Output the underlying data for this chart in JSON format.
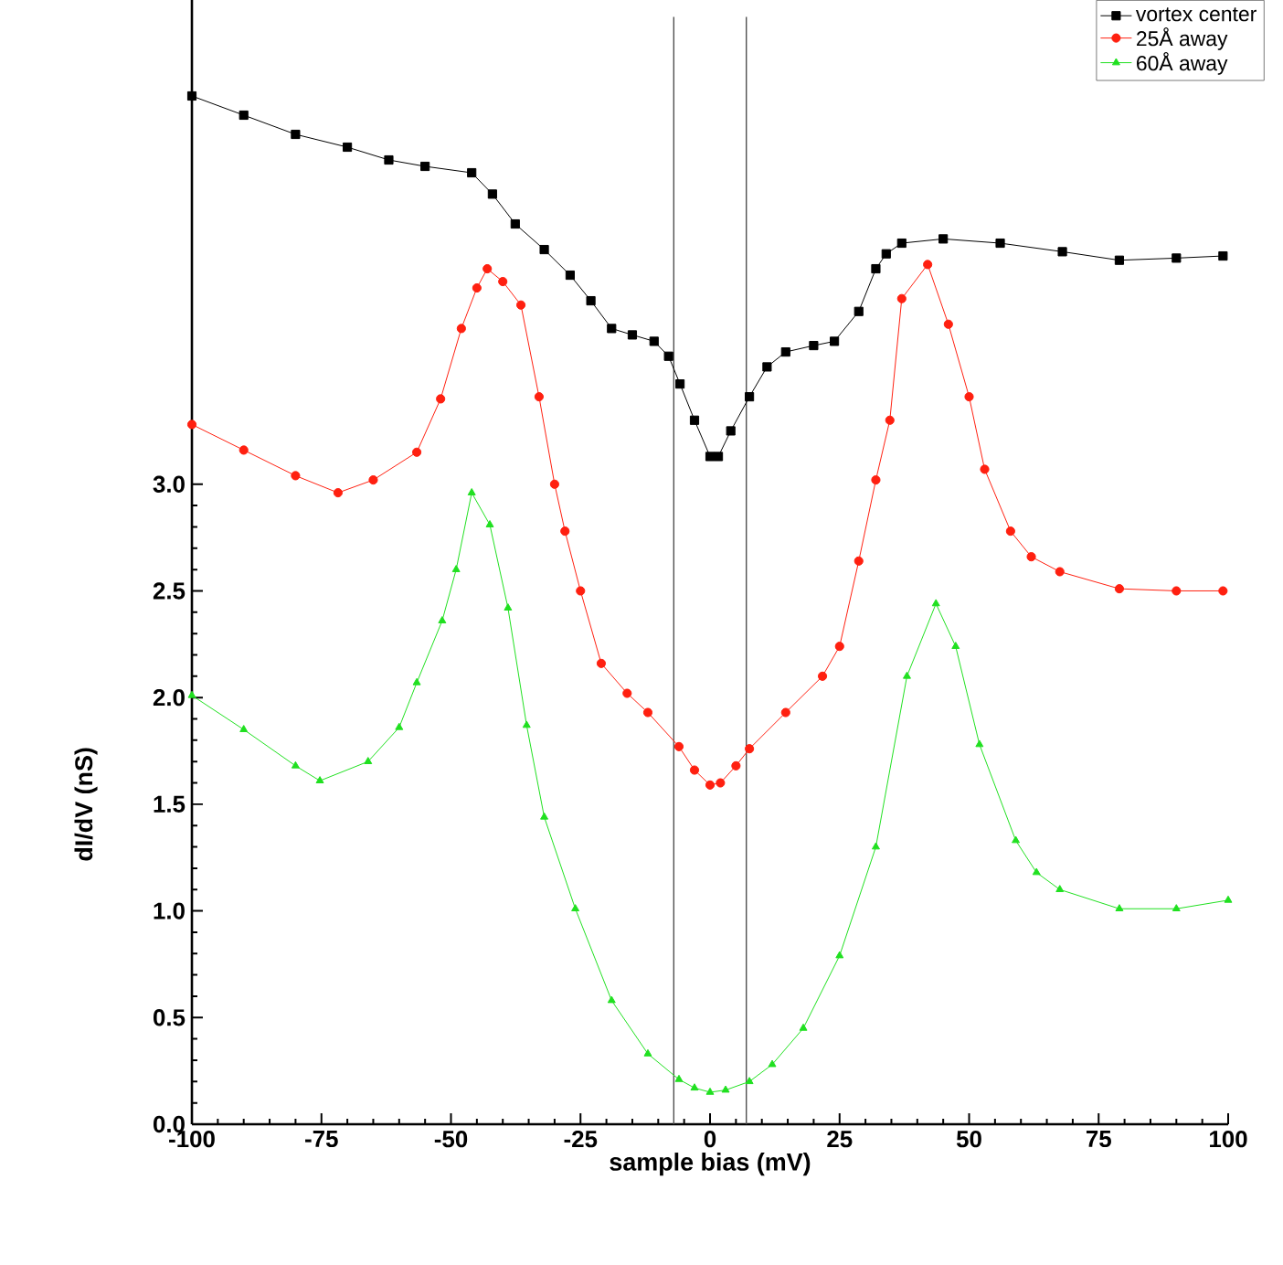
{
  "chart_data": {
    "type": "line",
    "xlabel": "sample bias (mV)",
    "ylabel": "dI/dV (nS)",
    "xlim": [
      -100,
      100
    ],
    "ylim": [
      0,
      5.27
    ],
    "xticks": [
      -100,
      -75,
      -50,
      -25,
      0,
      25,
      50,
      75,
      100
    ],
    "yticks": [
      {
        "value": 0,
        "label": "0.0"
      },
      {
        "value": 0.5,
        "label": "0.5"
      },
      {
        "value": 1,
        "label": "1.0"
      },
      {
        "value": 1.5,
        "label": "1.5"
      },
      {
        "value": 2,
        "label": "2.0"
      },
      {
        "value": 2.5,
        "label": "2.5"
      },
      {
        "value": 3,
        "label": "3.0"
      }
    ],
    "legend": "top right",
    "grid": false,
    "ref_lines": [
      {
        "axis": "x",
        "value": -7,
        "color": "#505050"
      },
      {
        "axis": "x",
        "value": 7,
        "color": "#505050"
      }
    ],
    "series": [
      {
        "name": "vortex center",
        "color": "#000000",
        "marker": "square",
        "x": [
          -100,
          -90,
          -80,
          -70,
          -62,
          -55,
          -46,
          -42,
          -37.6,
          -32,
          -27,
          -23,
          -19,
          -15,
          -10.8,
          -8,
          -5.8,
          -3,
          0,
          1.6,
          4,
          7.6,
          11,
          14.6,
          20,
          24,
          28.7,
          32,
          34,
          37,
          45,
          56,
          68,
          79,
          90,
          99
        ],
        "values": [
          4.82,
          4.73,
          4.64,
          4.58,
          4.52,
          4.49,
          4.46,
          4.36,
          4.22,
          4.1,
          3.98,
          3.86,
          3.73,
          3.7,
          3.67,
          3.6,
          3.47,
          3.3,
          3.13,
          3.13,
          3.25,
          3.41,
          3.55,
          3.62,
          3.65,
          3.67,
          3.81,
          4.01,
          4.08,
          4.13,
          4.15,
          4.13,
          4.09,
          4.05,
          4.06,
          4.07
        ]
      },
      {
        "name": "25Å away",
        "color": "#ff2010",
        "marker": "circle",
        "x": [
          -100,
          -90,
          -80,
          -71.8,
          -65,
          -56.6,
          -52,
          -48,
          -45,
          -43,
          -40,
          -36.5,
          -33,
          -30,
          -28,
          -25,
          -21,
          -16,
          -12,
          -6,
          -3,
          0,
          2,
          5,
          7.6,
          14.6,
          21.7,
          25,
          28.7,
          32,
          34.7,
          37,
          42,
          46,
          50,
          53,
          58,
          62,
          67.5,
          79,
          90,
          99
        ],
        "values": [
          3.28,
          3.16,
          3.04,
          2.96,
          3.02,
          3.15,
          3.4,
          3.73,
          3.92,
          4.01,
          3.95,
          3.84,
          3.41,
          3.0,
          2.78,
          2.5,
          2.16,
          2.02,
          1.93,
          1.77,
          1.66,
          1.59,
          1.6,
          1.68,
          1.76,
          1.93,
          2.1,
          2.24,
          2.64,
          3.02,
          3.3,
          3.87,
          4.03,
          3.75,
          3.41,
          3.07,
          2.78,
          2.66,
          2.59,
          2.51,
          2.5,
          2.5
        ]
      },
      {
        "name": "60Å away",
        "color": "#20e020",
        "marker": "triangle",
        "x": [
          -100,
          -90,
          -80,
          -75.3,
          -66,
          -60,
          -56.6,
          -51.7,
          -49,
          -46,
          -42.5,
          -39,
          -35.4,
          -32,
          -26,
          -19,
          -12,
          -6,
          -3,
          0,
          3,
          7.6,
          12,
          18,
          25,
          32,
          38,
          43.6,
          47.4,
          52,
          59,
          63,
          67.5,
          79,
          90,
          100
        ],
        "values": [
          2.01,
          1.85,
          1.68,
          1.61,
          1.7,
          1.86,
          2.07,
          2.36,
          2.6,
          2.96,
          2.81,
          2.42,
          1.87,
          1.44,
          1.01,
          0.58,
          0.33,
          0.21,
          0.17,
          0.15,
          0.16,
          0.2,
          0.28,
          0.45,
          0.79,
          1.3,
          2.1,
          2.44,
          2.24,
          1.78,
          1.33,
          1.18,
          1.1,
          1.01,
          1.01,
          1.05
        ]
      }
    ]
  }
}
